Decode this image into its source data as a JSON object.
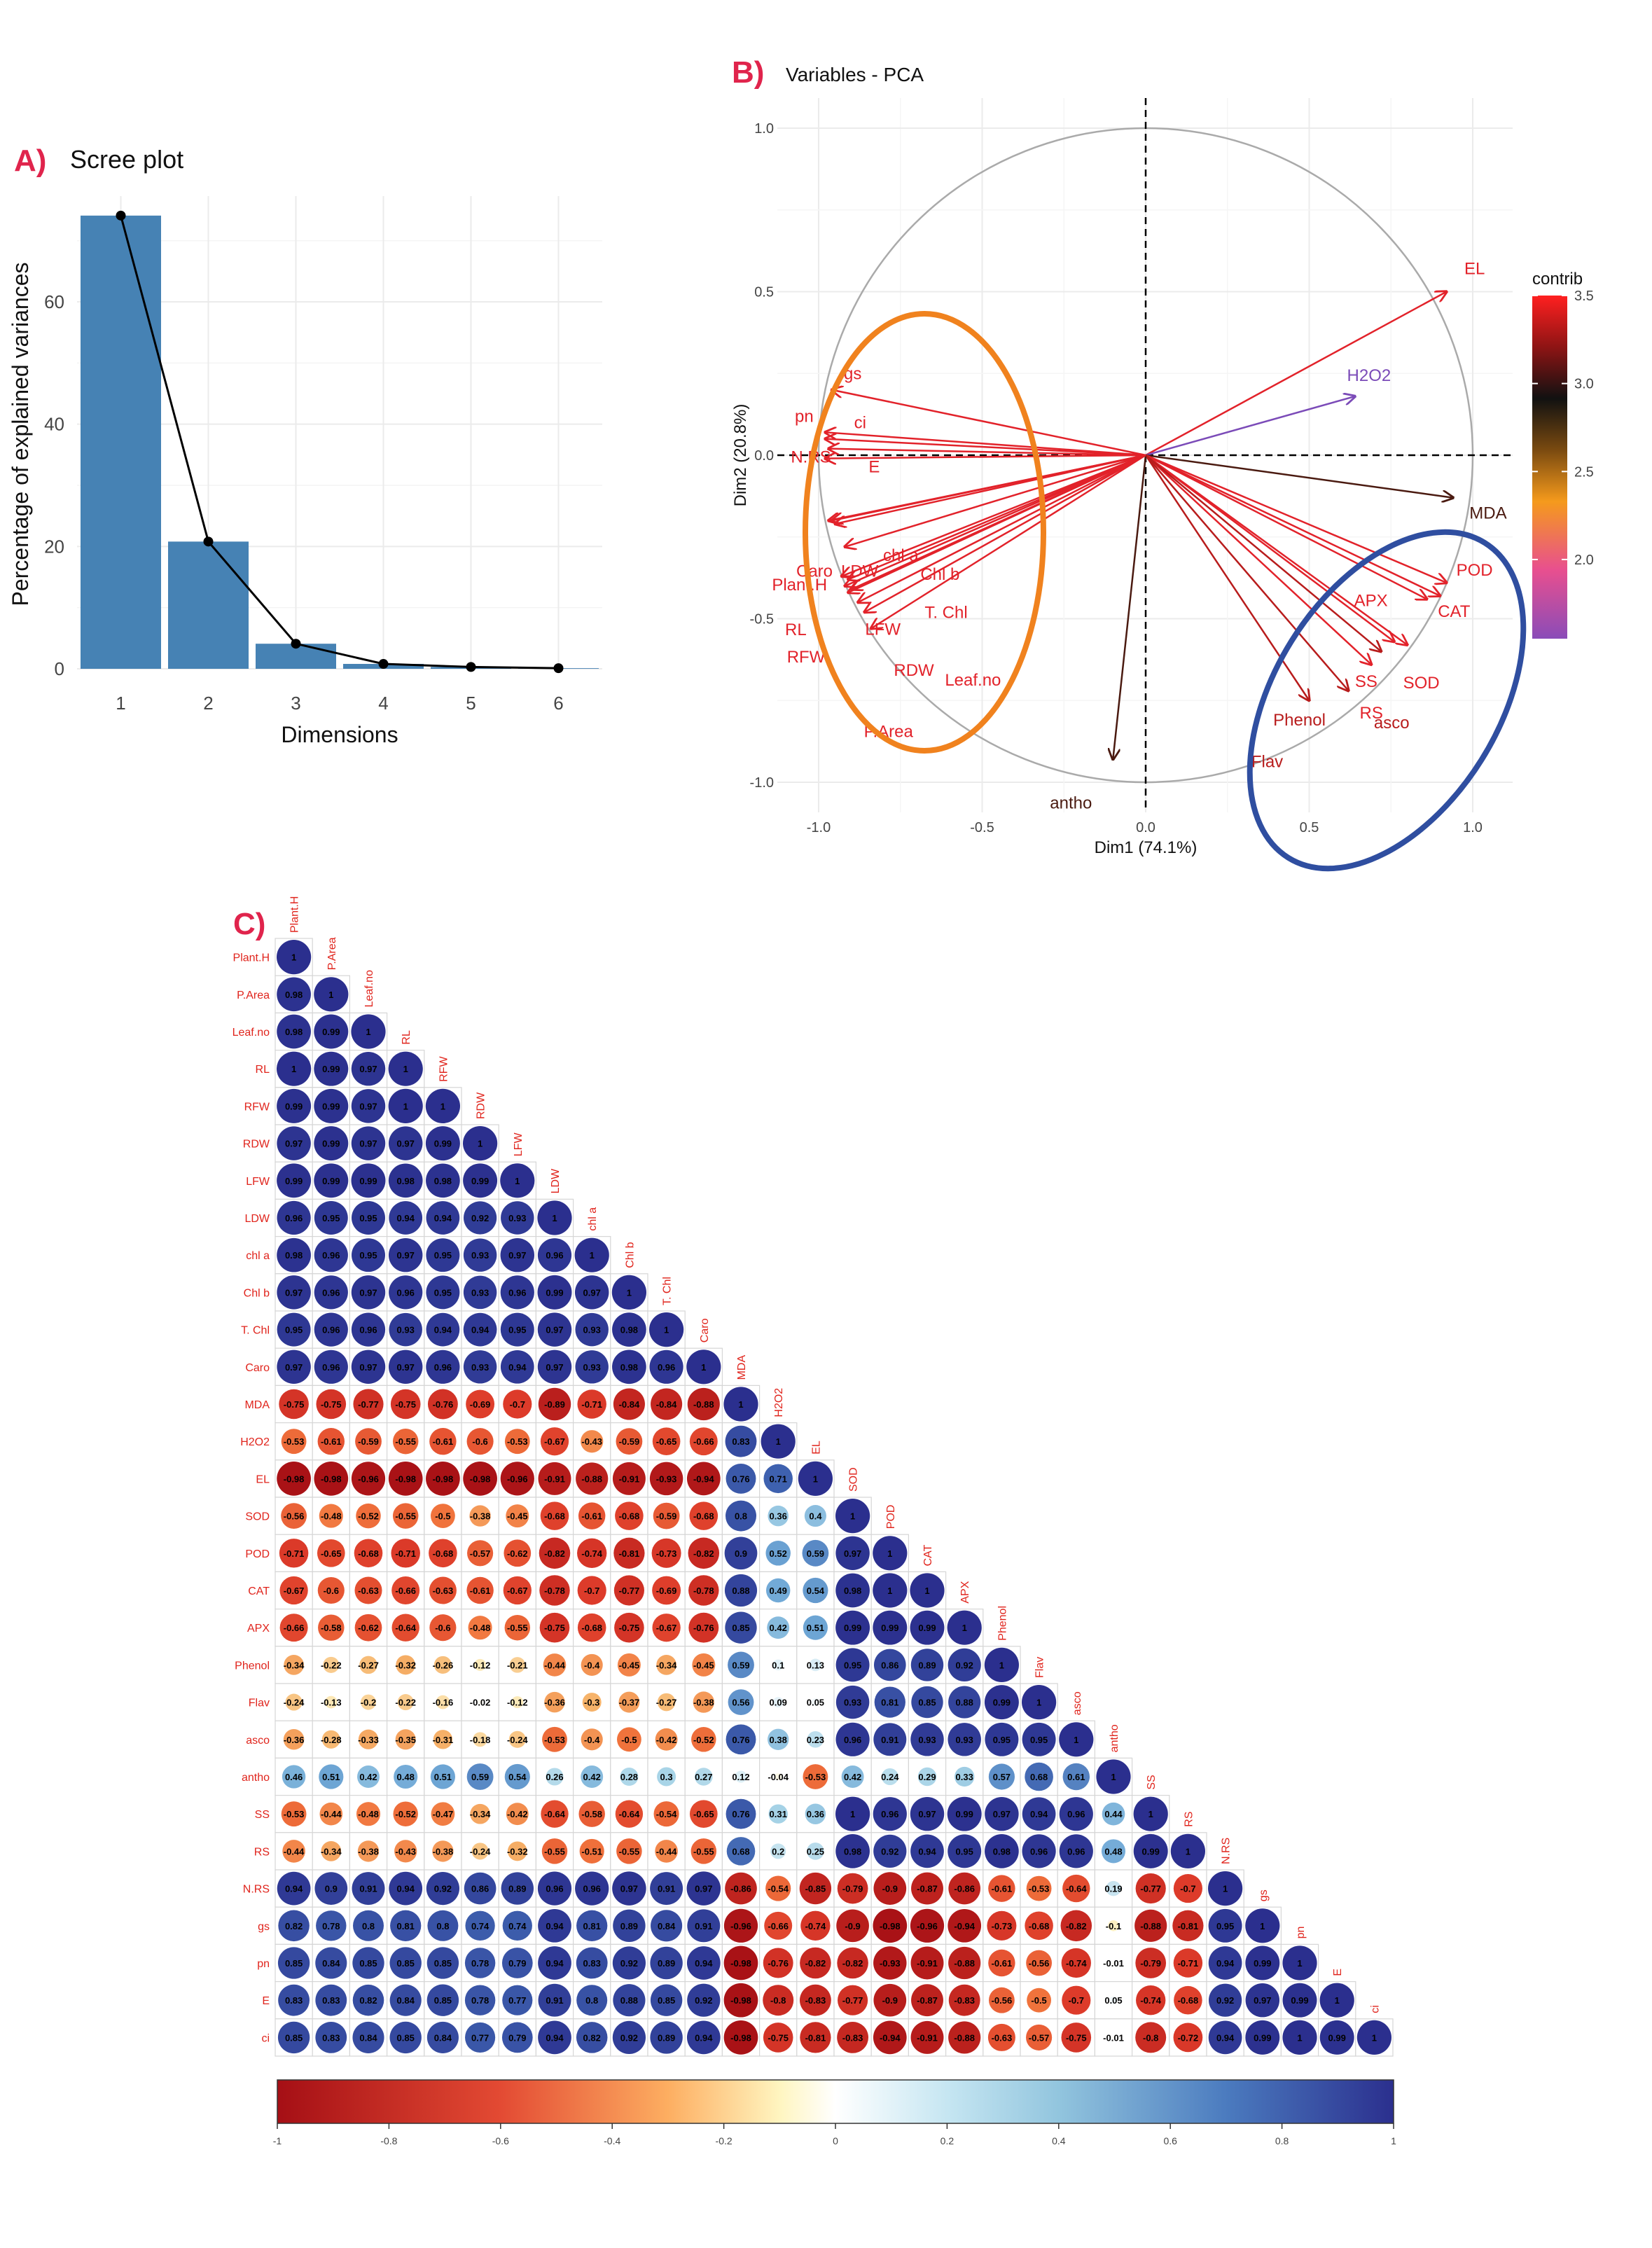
{
  "panels": {
    "a": {
      "letter": "A)",
      "title": "Scree plot"
    },
    "b": {
      "letter": "B)",
      "title": "Variables - PCA"
    },
    "c": {
      "letter": "C)"
    }
  },
  "colors": {
    "bar": "#4682b4",
    "panel_letter": "#e0244c",
    "ellipse_orange": "#f0821e",
    "ellipse_blue": "#2f4ea0",
    "corr_neg": "#a50f15",
    "corr_pos": "#2b2f8e"
  },
  "chart_data": [
    {
      "type": "bar",
      "title": "Scree plot",
      "categories": [
        "1",
        "2",
        "3",
        "4",
        "5",
        "6"
      ],
      "values": [
        74.1,
        20.8,
        4.1,
        0.8,
        0.3,
        0.1
      ],
      "line": true,
      "xlabel": "Dimensions",
      "ylabel": "Percentage of explained variances",
      "ylim": [
        0,
        75
      ],
      "yticks": [
        "0",
        "20",
        "40",
        "60"
      ],
      "grid": true
    },
    {
      "type": "scatter",
      "title": "Variables - PCA",
      "xlabel": "Dim1 (74.1%)",
      "ylabel": "Dim2 (20.8%)",
      "xlim": [
        -1.1,
        1.1
      ],
      "ylim": [
        -1.1,
        1.1
      ],
      "xticks": [
        "-1.0",
        "-0.5",
        "0.0",
        "0.5",
        "1.0"
      ],
      "yticks": [
        "-1.0",
        "-0.5",
        "0.0",
        "0.5",
        "1.0"
      ],
      "legend": {
        "title": "contrib",
        "ticks": [
          "2.0",
          "2.5",
          "3.0",
          "3.5"
        ],
        "placement": "right"
      },
      "grid": true,
      "vectors": [
        {
          "name": "EL",
          "x": 0.92,
          "y": 0.5,
          "c": 3.5
        },
        {
          "name": "H2O2",
          "x": 0.64,
          "y": 0.18,
          "c": 1.6
        },
        {
          "name": "MDA",
          "x": 0.94,
          "y": -0.13,
          "c": 3.0
        },
        {
          "name": "POD",
          "x": 0.92,
          "y": -0.39,
          "c": 3.4
        },
        {
          "name": "APX",
          "x": 0.86,
          "y": -0.44,
          "c": 3.4
        },
        {
          "name": "CAT",
          "x": 0.9,
          "y": -0.43,
          "c": 3.4
        },
        {
          "name": "SOD",
          "x": 0.8,
          "y": -0.58,
          "c": 3.4
        },
        {
          "name": "SS",
          "x": 0.76,
          "y": -0.57,
          "c": 3.4
        },
        {
          "name": "RS",
          "x": 0.69,
          "y": -0.64,
          "c": 3.4
        },
        {
          "name": "asco",
          "x": 0.72,
          "y": -0.6,
          "c": 3.3
        },
        {
          "name": "Phenol",
          "x": 0.62,
          "y": -0.72,
          "c": 3.3
        },
        {
          "name": "Flav",
          "x": 0.5,
          "y": -0.75,
          "c": 3.3
        },
        {
          "name": "antho",
          "x": -0.1,
          "y": -0.93,
          "c": 3.0
        },
        {
          "name": "gs",
          "x": -0.96,
          "y": 0.2,
          "c": 3.5
        },
        {
          "name": "pn",
          "x": -0.98,
          "y": 0.07,
          "c": 3.5
        },
        {
          "name": "ci",
          "x": -0.98,
          "y": 0.05,
          "c": 3.5
        },
        {
          "name": "N.RS",
          "x": -0.97,
          "y": 0.02,
          "c": 3.5
        },
        {
          "name": "E",
          "x": -0.98,
          "y": -0.01,
          "c": 3.5
        },
        {
          "name": "Caro",
          "x": -0.97,
          "y": -0.2,
          "c": 3.5
        },
        {
          "name": "LDW",
          "x": -0.96,
          "y": -0.2,
          "c": 3.5
        },
        {
          "name": "Chl b",
          "x": -0.95,
          "y": -0.21,
          "c": 3.5
        },
        {
          "name": "chl a",
          "x": -0.92,
          "y": -0.28,
          "c": 3.5
        },
        {
          "name": "Plant.H",
          "x": -0.93,
          "y": -0.37,
          "c": 3.5
        },
        {
          "name": "T. Chl",
          "x": -0.91,
          "y": -0.38,
          "c": 3.5
        },
        {
          "name": "RL",
          "x": -0.92,
          "y": -0.4,
          "c": 3.5
        },
        {
          "name": "LFW",
          "x": -0.9,
          "y": -0.41,
          "c": 3.5
        },
        {
          "name": "RFW",
          "x": -0.91,
          "y": -0.42,
          "c": 3.5
        },
        {
          "name": "RDW",
          "x": -0.88,
          "y": -0.45,
          "c": 3.5
        },
        {
          "name": "Leaf.no",
          "x": -0.86,
          "y": -0.48,
          "c": 3.5
        },
        {
          "name": "P.Area",
          "x": -0.84,
          "y": -0.53,
          "c": 3.5
        }
      ]
    },
    {
      "type": "heatmap",
      "variables": [
        "Plant.H",
        "P.Area",
        "Leaf.no",
        "RL",
        "RFW",
        "RDW",
        "LFW",
        "LDW",
        "chl a",
        "Chl b",
        "T. Chl",
        "Caro",
        "MDA",
        "H2O2",
        "EL",
        "SOD",
        "POD",
        "CAT",
        "APX",
        "Phenol",
        "Flav",
        "asco",
        "antho",
        "SS",
        "RS",
        "N.RS",
        "gs",
        "pn",
        "E",
        "ci"
      ],
      "scale_ticks": [
        "-1",
        "-0.8",
        "-0.6",
        "-0.4",
        "-0.2",
        "0",
        "0.2",
        "0.4",
        "0.6",
        "0.8",
        "1"
      ],
      "matrix": [
        [
          "1"
        ],
        [
          "0.98",
          "1"
        ],
        [
          "0.98",
          "0.99",
          "1"
        ],
        [
          "1",
          "0.99",
          "0.97",
          "1"
        ],
        [
          "0.99",
          "0.99",
          "0.97",
          "1",
          "1"
        ],
        [
          "0.97",
          "0.99",
          "0.97",
          "0.97",
          "0.99",
          "1"
        ],
        [
          "0.99",
          "0.99",
          "0.99",
          "0.98",
          "0.98",
          "0.99",
          "1"
        ],
        [
          "0.96",
          "0.95",
          "0.95",
          "0.94",
          "0.94",
          "0.92",
          "0.93",
          "1"
        ],
        [
          "0.98",
          "0.96",
          "0.95",
          "0.97",
          "0.95",
          "0.93",
          "0.97",
          "0.96",
          "1"
        ],
        [
          "0.97",
          "0.96",
          "0.97",
          "0.96",
          "0.95",
          "0.93",
          "0.96",
          "0.99",
          "0.97",
          "1"
        ],
        [
          "0.95",
          "0.96",
          "0.96",
          "0.93",
          "0.94",
          "0.94",
          "0.95",
          "0.97",
          "0.93",
          "0.98",
          "1"
        ],
        [
          "0.97",
          "0.96",
          "0.97",
          "0.97",
          "0.96",
          "0.93",
          "0.94",
          "0.97",
          "0.93",
          "0.98",
          "0.96",
          "1"
        ],
        [
          "-0.75",
          "-0.75",
          "-0.77",
          "-0.75",
          "-0.76",
          "-0.69",
          "-0.7",
          "-0.89",
          "-0.71",
          "-0.84",
          "-0.84",
          "-0.88",
          "1"
        ],
        [
          "-0.53",
          "-0.61",
          "-0.59",
          "-0.55",
          "-0.61",
          "-0.6",
          "-0.53",
          "-0.67",
          "-0.43",
          "-0.59",
          "-0.65",
          "-0.66",
          "0.83",
          "1"
        ],
        [
          "-0.98",
          "-0.98",
          "-0.96",
          "-0.98",
          "-0.98",
          "-0.98",
          "-0.96",
          "-0.91",
          "-0.88",
          "-0.91",
          "-0.93",
          "-0.94",
          "0.76",
          "0.71",
          "1"
        ],
        [
          "-0.56",
          "-0.48",
          "-0.52",
          "-0.55",
          "-0.5",
          "-0.38",
          "-0.45",
          "-0.68",
          "-0.61",
          "-0.68",
          "-0.59",
          "-0.68",
          "0.8",
          "0.36",
          "0.4",
          "1"
        ],
        [
          "-0.71",
          "-0.65",
          "-0.68",
          "-0.71",
          "-0.68",
          "-0.57",
          "-0.62",
          "-0.82",
          "-0.74",
          "-0.81",
          "-0.73",
          "-0.82",
          "0.9",
          "0.52",
          "0.59",
          "0.97",
          "1"
        ],
        [
          "-0.67",
          "-0.6",
          "-0.63",
          "-0.66",
          "-0.63",
          "-0.61",
          "-0.67",
          "-0.78",
          "-0.7",
          "-0.77",
          "-0.69",
          "-0.78",
          "0.88",
          "0.49",
          "0.54",
          "0.98",
          "1",
          "1"
        ],
        [
          "-0.66",
          "-0.58",
          "-0.62",
          "-0.64",
          "-0.6",
          "-0.48",
          "-0.55",
          "-0.75",
          "-0.68",
          "-0.75",
          "-0.67",
          "-0.76",
          "0.85",
          "0.42",
          "0.51",
          "0.99",
          "0.99",
          "0.99",
          "1"
        ],
        [
          "-0.34",
          "-0.22",
          "-0.27",
          "-0.32",
          "-0.26",
          "-0.12",
          "-0.21",
          "-0.44",
          "-0.4",
          "-0.45",
          "-0.34",
          "-0.45",
          "0.59",
          "0.1",
          "0.13",
          "0.95",
          "0.86",
          "0.89",
          "0.92",
          "1"
        ],
        [
          "-0.24",
          "-0.13",
          "-0.2",
          "-0.22",
          "-0.16",
          "-0.02",
          "-0.12",
          "-0.36",
          "-0.3",
          "-0.37",
          "-0.27",
          "-0.38",
          "0.56",
          "0.09",
          "0.05",
          "0.93",
          "0.81",
          "0.85",
          "0.88",
          "0.99",
          "1"
        ],
        [
          "-0.36",
          "-0.28",
          "-0.33",
          "-0.35",
          "-0.31",
          "-0.18",
          "-0.24",
          "-0.53",
          "-0.4",
          "-0.5",
          "-0.42",
          "-0.52",
          "0.76",
          "0.38",
          "0.23",
          "0.96",
          "0.91",
          "0.93",
          "0.93",
          "0.95",
          "0.95",
          "1"
        ],
        [
          "0.46",
          "0.51",
          "0.42",
          "0.48",
          "0.51",
          "0.59",
          "0.54",
          "0.26",
          "0.42",
          "0.28",
          "0.3",
          "0.27",
          "0.12",
          "-0.04",
          "-0.53",
          "0.42",
          "0.24",
          "0.29",
          "0.33",
          "0.57",
          "0.68",
          "0.61",
          "1"
        ],
        [
          "-0.53",
          "-0.44",
          "-0.48",
          "-0.52",
          "-0.47",
          "-0.34",
          "-0.42",
          "-0.64",
          "-0.58",
          "-0.64",
          "-0.54",
          "-0.65",
          "0.76",
          "0.31",
          "0.36",
          "1",
          "0.96",
          "0.97",
          "0.99",
          "0.97",
          "0.94",
          "0.96",
          "0.44",
          "1"
        ],
        [
          "-0.44",
          "-0.34",
          "-0.38",
          "-0.43",
          "-0.38",
          "-0.24",
          "-0.32",
          "-0.55",
          "-0.51",
          "-0.55",
          "-0.44",
          "-0.55",
          "0.68",
          "0.2",
          "0.25",
          "0.98",
          "0.92",
          "0.94",
          "0.95",
          "0.98",
          "0.96",
          "0.96",
          "0.48",
          "0.99",
          "1"
        ],
        [
          "0.94",
          "0.9",
          "0.91",
          "0.94",
          "0.92",
          "0.86",
          "0.89",
          "0.96",
          "0.96",
          "0.97",
          "0.91",
          "0.97",
          "-0.86",
          "-0.54",
          "-0.85",
          "-0.79",
          "-0.9",
          "-0.87",
          "-0.86",
          "-0.61",
          "-0.53",
          "-0.64",
          "0.19",
          "-0.77",
          "-0.7",
          "1"
        ],
        [
          "0.82",
          "0.78",
          "0.8",
          "0.81",
          "0.8",
          "0.74",
          "0.74",
          "0.94",
          "0.81",
          "0.89",
          "0.84",
          "0.91",
          "-0.96",
          "-0.66",
          "-0.74",
          "-0.9",
          "-0.98",
          "-0.96",
          "-0.94",
          "-0.73",
          "-0.68",
          "-0.82",
          "-0.1",
          "-0.88",
          "-0.81",
          "0.95",
          "1"
        ],
        [
          "0.85",
          "0.84",
          "0.85",
          "0.85",
          "0.85",
          "0.78",
          "0.79",
          "0.94",
          "0.83",
          "0.92",
          "0.89",
          "0.94",
          "-0.98",
          "-0.76",
          "-0.82",
          "-0.82",
          "-0.93",
          "-0.91",
          "-0.88",
          "-0.61",
          "-0.56",
          "-0.74",
          "-0.01",
          "-0.79",
          "-0.71",
          "0.94",
          "0.99",
          "1"
        ],
        [
          "0.83",
          "0.83",
          "0.82",
          "0.84",
          "0.85",
          "0.78",
          "0.77",
          "0.91",
          "0.8",
          "0.88",
          "0.85",
          "0.92",
          "-0.98",
          "-0.8",
          "-0.83",
          "-0.77",
          "-0.9",
          "-0.87",
          "-0.83",
          "-0.56",
          "-0.5",
          "-0.7",
          "0.05",
          "-0.74",
          "-0.68",
          "0.92",
          "0.97",
          "0.99",
          "1"
        ],
        [
          "0.85",
          "0.83",
          "0.84",
          "0.85",
          "0.84",
          "0.77",
          "0.79",
          "0.94",
          "0.82",
          "0.92",
          "0.89",
          "0.94",
          "-0.98",
          "-0.75",
          "-0.81",
          "-0.83",
          "-0.94",
          "-0.91",
          "-0.88",
          "-0.63",
          "-0.57",
          "-0.75",
          "-0.01",
          "-0.8",
          "-0.72",
          "0.94",
          "0.99",
          "1",
          "0.99",
          "1"
        ]
      ]
    }
  ]
}
